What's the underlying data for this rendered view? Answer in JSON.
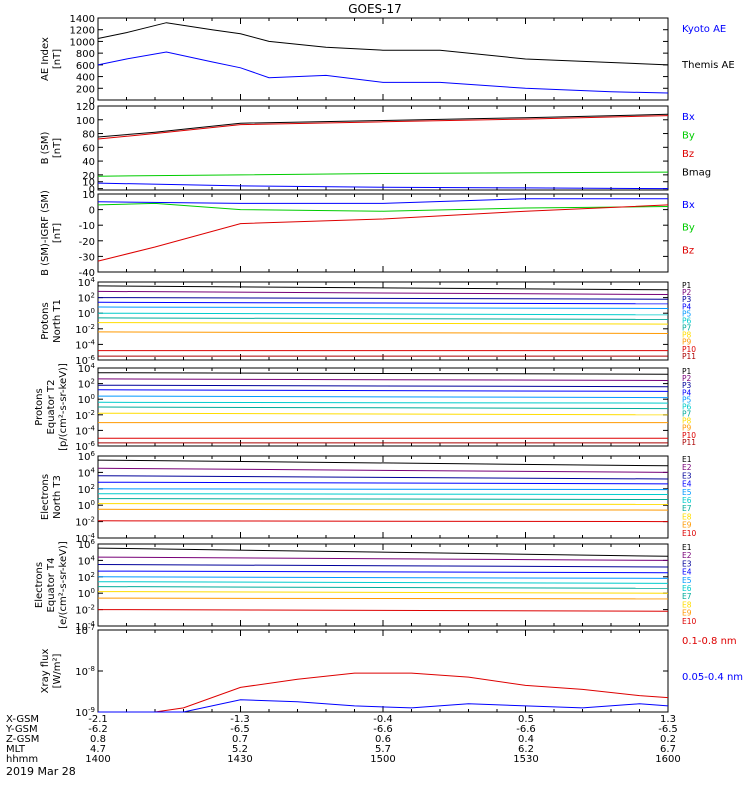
{
  "title": "GOES-17",
  "date_label": "2019 Mar 28",
  "orbit_table": {
    "row_labels": [
      "X-GSM",
      "Y-GSM",
      "Z-GSM",
      "MLT",
      "hhmm"
    ],
    "columns": [
      [
        "-2.1",
        "-6.2",
        "0.8",
        "4.7",
        "1400"
      ],
      [
        "-1.3",
        "-6.5",
        "0.7",
        "5.2",
        "1430"
      ],
      [
        "-0.4",
        "-6.6",
        "0.6",
        "5.7",
        "1500"
      ],
      [
        "0.5",
        "-6.6",
        "0.4",
        "6.2",
        "1530"
      ],
      [
        "1.3",
        "-6.5",
        "0.2",
        "6.7",
        "1600"
      ]
    ]
  },
  "colors": {
    "black": "#000000",
    "blue": "#0000ff",
    "green": "#00cc00",
    "red": "#dd0000",
    "darkred": "#aa0000",
    "purple": "#770077",
    "navy": "#000099",
    "lightblue": "#0099ff",
    "cyan": "#00cccc",
    "teal": "#00aa99",
    "lightgreen": "#66dd00",
    "yellow": "#ffdd00",
    "orange": "#ff9900"
  },
  "chart_data": [
    {
      "type": "line",
      "ylabel": [
        "AE Index",
        "[nT]"
      ],
      "yscale": "linear",
      "ylim": [
        0,
        1400
      ],
      "yticks": [
        0,
        200,
        400,
        600,
        800,
        1000,
        1200,
        1400
      ],
      "yticklabels": [
        "0",
        "200",
        "400",
        "600",
        "800",
        "1000",
        "1200",
        "1400"
      ],
      "series": [
        {
          "name": "Kyoto AE",
          "color": "blue",
          "x": [
            0,
            0.05,
            0.12,
            0.2,
            0.25,
            0.3,
            0.4,
            0.5,
            0.6,
            0.75,
            0.9,
            1.0
          ],
          "y": [
            600,
            700,
            820,
            650,
            550,
            380,
            420,
            300,
            300,
            200,
            140,
            120
          ]
        },
        {
          "name": "Themis AE",
          "color": "black",
          "x": [
            0,
            0.05,
            0.12,
            0.2,
            0.25,
            0.3,
            0.4,
            0.5,
            0.6,
            0.75,
            0.9,
            1.0
          ],
          "y": [
            1050,
            1150,
            1320,
            1200,
            1130,
            1000,
            900,
            850,
            850,
            700,
            640,
            600
          ]
        }
      ]
    },
    {
      "type": "line",
      "ylabel": [
        "B (SM)",
        "[nT]"
      ],
      "yscale": "linear",
      "ylim": [
        -2,
        120
      ],
      "yticks": [
        0,
        10,
        20,
        40,
        60,
        80,
        100,
        120
      ],
      "yticklabels": [
        "0",
        "10",
        "20",
        "40",
        "60",
        "80",
        "100",
        "120"
      ],
      "series": [
        {
          "name": "Bx",
          "color": "blue",
          "x": [
            0,
            0.25,
            0.5,
            0.75,
            1.0
          ],
          "y": [
            8,
            4,
            2,
            1,
            0
          ]
        },
        {
          "name": "By",
          "color": "green",
          "x": [
            0,
            0.25,
            0.5,
            0.75,
            1.0
          ],
          "y": [
            18,
            20,
            22,
            23,
            24
          ]
        },
        {
          "name": "Bz",
          "color": "red",
          "x": [
            0,
            0.1,
            0.25,
            0.5,
            0.75,
            1.0
          ],
          "y": [
            72,
            80,
            93,
            97,
            101,
            106
          ]
        },
        {
          "name": "Bmag",
          "color": "black",
          "x": [
            0,
            0.1,
            0.25,
            0.5,
            0.75,
            1.0
          ],
          "y": [
            75,
            82,
            95,
            99,
            103,
            108
          ]
        }
      ]
    },
    {
      "type": "line",
      "ylabel": [
        "B (SM)-IGRF (SM)",
        "[nT]"
      ],
      "yscale": "linear",
      "ylim": [
        -40,
        10
      ],
      "yticks": [
        -40,
        -30,
        -20,
        -10,
        0,
        10
      ],
      "yticklabels": [
        "-40",
        "-30",
        "-20",
        "-10",
        "0",
        "10"
      ],
      "series": [
        {
          "name": "Bx",
          "color": "blue",
          "x": [
            0,
            0.25,
            0.5,
            0.75,
            1.0
          ],
          "y": [
            5,
            4,
            4,
            7,
            7
          ]
        },
        {
          "name": "By",
          "color": "green",
          "x": [
            0,
            0.1,
            0.25,
            0.5,
            0.75,
            1.0
          ],
          "y": [
            3,
            4,
            0,
            -1,
            1,
            2
          ]
        },
        {
          "name": "Bz",
          "color": "red",
          "x": [
            0,
            0.1,
            0.25,
            0.5,
            0.75,
            1.0
          ],
          "y": [
            -33,
            -24,
            -9,
            -6,
            -1,
            3
          ]
        }
      ]
    },
    {
      "type": "line",
      "ylabel": [
        "Protons",
        "North T1"
      ],
      "yscale": "log",
      "ylim": [
        -6,
        4
      ],
      "yticks": [
        4,
        2,
        0,
        -2,
        -4,
        -6
      ],
      "yticklabels": [
        "10^4",
        "10^2",
        "10^0",
        "10^-2",
        "10^-4",
        "10^-6"
      ],
      "series": [
        {
          "name": "P1",
          "color": "black",
          "log_values": [
            3.5,
            3.0
          ]
        },
        {
          "name": "P2",
          "color": "purple",
          "log_values": [
            2.8,
            2.4
          ]
        },
        {
          "name": "P3",
          "color": "navy",
          "log_values": [
            2.0,
            1.8
          ]
        },
        {
          "name": "P4",
          "color": "blue",
          "log_values": [
            1.4,
            1.2
          ]
        },
        {
          "name": "P5",
          "color": "lightblue",
          "log_values": [
            0.8,
            0.6
          ]
        },
        {
          "name": "P6",
          "color": "cyan",
          "log_values": [
            0.0,
            -0.2
          ]
        },
        {
          "name": "P7",
          "color": "teal",
          "log_values": [
            -0.6,
            -0.8
          ]
        },
        {
          "name": "P8",
          "color": "yellow",
          "log_values": [
            -1.2,
            -1.4
          ]
        },
        {
          "name": "P9",
          "color": "orange",
          "log_values": [
            -2.4,
            -2.6
          ]
        },
        {
          "name": "P10",
          "color": "red",
          "log_values": [
            -4.8,
            -4.8
          ]
        },
        {
          "name": "P11",
          "color": "darkred",
          "log_values": [
            -5.5,
            -5.5
          ]
        }
      ]
    },
    {
      "type": "line",
      "ylabel": [
        "Protons",
        "Equator T2",
        "[p/(cm²-s-sr-keV)]"
      ],
      "yscale": "log",
      "ylim": [
        -6,
        4
      ],
      "yticks": [
        4,
        2,
        0,
        -2,
        -4,
        -6
      ],
      "yticklabels": [
        "10^4",
        "10^2",
        "10^0",
        "10^-2",
        "10^-4",
        "10^-6"
      ],
      "series": [
        {
          "name": "P1",
          "color": "black",
          "log_values": [
            3.4,
            3.2
          ]
        },
        {
          "name": "P2",
          "color": "purple",
          "log_values": [
            2.6,
            2.4
          ]
        },
        {
          "name": "P3",
          "color": "navy",
          "log_values": [
            1.8,
            1.6
          ]
        },
        {
          "name": "P4",
          "color": "blue",
          "log_values": [
            1.2,
            1.0
          ]
        },
        {
          "name": "P5",
          "color": "lightblue",
          "log_values": [
            0.4,
            0.2
          ]
        },
        {
          "name": "P6",
          "color": "cyan",
          "log_values": [
            -0.4,
            -0.5
          ]
        },
        {
          "name": "P7",
          "color": "teal",
          "log_values": [
            -1.0,
            -1.2
          ]
        },
        {
          "name": "P8",
          "color": "yellow",
          "log_values": [
            -1.8,
            -2.0
          ]
        },
        {
          "name": "P9",
          "color": "orange",
          "log_values": [
            -3.0,
            -3.0
          ]
        },
        {
          "name": "P10",
          "color": "red",
          "log_values": [
            -5.0,
            -5.0
          ]
        },
        {
          "name": "P11",
          "color": "darkred",
          "log_values": [
            -5.6,
            -5.6
          ]
        }
      ]
    },
    {
      "type": "line",
      "ylabel": [
        "Electrons",
        "North T3"
      ],
      "yscale": "log",
      "ylim": [
        -4,
        6
      ],
      "yticks": [
        6,
        4,
        2,
        0,
        -2,
        -4
      ],
      "yticklabels": [
        "10^6",
        "10^4",
        "10^2",
        "10^0",
        "10^-2",
        "10^-4"
      ],
      "series": [
        {
          "name": "E1",
          "color": "black",
          "log_values": [
            5.5,
            4.8
          ]
        },
        {
          "name": "E2",
          "color": "purple",
          "log_values": [
            4.5,
            4.0
          ]
        },
        {
          "name": "E3",
          "color": "navy",
          "log_values": [
            3.6,
            3.2
          ]
        },
        {
          "name": "E4",
          "color": "blue",
          "log_values": [
            2.8,
            2.6
          ]
        },
        {
          "name": "E5",
          "color": "lightblue",
          "log_values": [
            2.0,
            1.9
          ]
        },
        {
          "name": "E6",
          "color": "cyan",
          "log_values": [
            1.4,
            1.3
          ]
        },
        {
          "name": "E7",
          "color": "teal",
          "log_values": [
            0.8,
            0.7
          ]
        },
        {
          "name": "E8",
          "color": "yellow",
          "log_values": [
            0.2,
            0.1
          ]
        },
        {
          "name": "E9",
          "color": "orange",
          "log_values": [
            -0.5,
            -0.6
          ]
        },
        {
          "name": "E10",
          "color": "red",
          "log_values": [
            -1.9,
            -2.0
          ]
        }
      ]
    },
    {
      "type": "line",
      "ylabel": [
        "Electrons",
        "Equator T4",
        "[e/(cm²-s-sr-keV)]"
      ],
      "yscale": "log",
      "ylim": [
        -4,
        6
      ],
      "yticks": [
        6,
        4,
        2,
        0,
        -2,
        -4
      ],
      "yticklabels": [
        "10^6",
        "10^4",
        "10^2",
        "10^0",
        "10^-2",
        "10^-4"
      ],
      "series": [
        {
          "name": "E1",
          "color": "black",
          "log_values": [
            5.5,
            4.5
          ]
        },
        {
          "name": "E2",
          "color": "purple",
          "log_values": [
            4.4,
            4.0
          ]
        },
        {
          "name": "E3",
          "color": "navy",
          "log_values": [
            3.5,
            3.2
          ]
        },
        {
          "name": "E4",
          "color": "blue",
          "log_values": [
            2.7,
            2.5
          ]
        },
        {
          "name": "E5",
          "color": "lightblue",
          "log_values": [
            2.0,
            1.8
          ]
        },
        {
          "name": "E6",
          "color": "cyan",
          "log_values": [
            1.4,
            1.2
          ]
        },
        {
          "name": "E7",
          "color": "teal",
          "log_values": [
            0.8,
            0.6
          ]
        },
        {
          "name": "E8",
          "color": "yellow",
          "log_values": [
            0.2,
            0.0
          ]
        },
        {
          "name": "E9",
          "color": "orange",
          "log_values": [
            -0.6,
            -0.7
          ]
        },
        {
          "name": "E10",
          "color": "red",
          "log_values": [
            -2.0,
            -2.2
          ]
        }
      ]
    },
    {
      "type": "line",
      "ylabel": [
        "Xray flux",
        "[W/m²]"
      ],
      "yscale": "log",
      "ylim": [
        -9,
        -7
      ],
      "yticks": [
        -7,
        -8,
        -9
      ],
      "yticklabels": [
        "10^-7",
        "10^-8",
        "10^-9"
      ],
      "series": [
        {
          "name": "0.1-0.8 nm",
          "color": "red",
          "x": [
            0,
            0.1,
            0.15,
            0.25,
            0.35,
            0.45,
            0.55,
            0.65,
            0.75,
            0.85,
            0.95,
            1.0
          ],
          "log_values": [
            -9.0,
            -9.0,
            -8.9,
            -8.4,
            -8.2,
            -8.05,
            -8.05,
            -8.15,
            -8.35,
            -8.45,
            -8.6,
            -8.65
          ]
        },
        {
          "name": "0.05-0.4 nm",
          "color": "blue",
          "x": [
            0,
            0.1,
            0.15,
            0.25,
            0.35,
            0.45,
            0.55,
            0.65,
            0.75,
            0.85,
            0.95,
            1.0
          ],
          "log_values": [
            -9.0,
            -9.0,
            -9.0,
            -8.7,
            -8.75,
            -8.85,
            -8.9,
            -8.8,
            -8.85,
            -8.9,
            -8.8,
            -8.85
          ]
        }
      ]
    }
  ]
}
